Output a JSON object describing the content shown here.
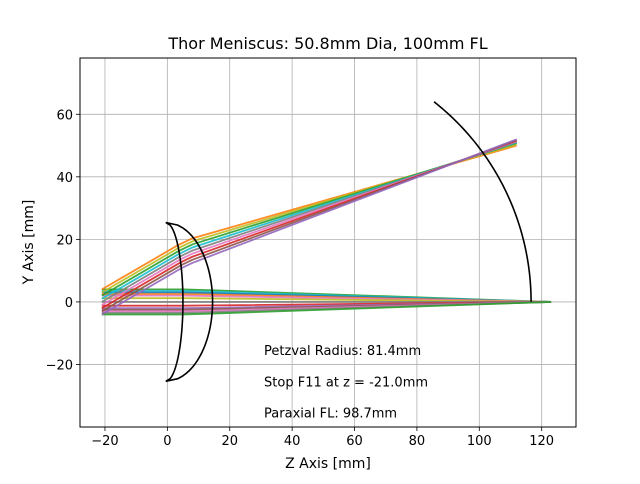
{
  "chart_data": {
    "type": "line",
    "title": "Thor Meniscus: 50.8mm Dia, 100mm FL",
    "xlabel": "Z Axis [mm]",
    "ylabel": "Y Axis [mm]",
    "xlim": [
      -28,
      131
    ],
    "ylim": [
      -40,
      78
    ],
    "xticks": [
      -20,
      0,
      20,
      40,
      60,
      80,
      100,
      120
    ],
    "yticks": [
      -20,
      0,
      20,
      40,
      60
    ],
    "grid": true,
    "annotations": [
      {
        "text": "Petzval Radius: 81.4mm",
        "x": 31,
        "y": -17
      },
      {
        "text": "Stop F11 at z = -21.0mm",
        "x": 31,
        "y": -27
      },
      {
        "text": "Paraxial FL: 98.7mm",
        "x": 31,
        "y": -37
      }
    ],
    "lens": {
      "name": "meniscus lens",
      "color": "#000000",
      "front_surface": {
        "apex_z": 5,
        "edge_z": -0.5,
        "half_height": 25.4
      },
      "back_surface": {
        "apex_z": 14.5,
        "edge_z": -0.5,
        "half_height": 25.4
      }
    },
    "petzval_surface": {
      "name": "petzval surface",
      "color": "#000000",
      "center_z": 35.2,
      "radius": 81.4,
      "y_range": [
        0,
        64
      ]
    },
    "ray_bundles": [
      {
        "name": "on-axis bundle",
        "end": [
          123,
          0
        ],
        "rays": [
          {
            "y": 4.0,
            "color": "#2ca02c"
          },
          {
            "y": 3.5,
            "color": "#17becf"
          },
          {
            "y": 3.0,
            "color": "#1f77b4"
          },
          {
            "y": 2.5,
            "color": "#ff7f0e"
          },
          {
            "y": 2.0,
            "color": "#e377c2"
          },
          {
            "y": 1.2,
            "color": "#bcbd22"
          },
          {
            "y": 0.0,
            "color": "#7f7f7f"
          },
          {
            "y": -1.2,
            "color": "#d62728"
          },
          {
            "y": -2.0,
            "color": "#9467bd"
          },
          {
            "y": -2.5,
            "color": "#8c564b"
          },
          {
            "y": -3.0,
            "color": "#e377c2"
          },
          {
            "y": -3.5,
            "color": "#7f7f7f"
          },
          {
            "y": -4.0,
            "color": "#2ca02c"
          }
        ]
      },
      {
        "name": "off-axis bundle",
        "end": [
          112,
          51
        ],
        "rays": [
          {
            "y": 4.0,
            "color": "#ff7f0e",
            "end_y": 50.0
          },
          {
            "y": 3.0,
            "color": "#bcbd22",
            "end_y": 50.4
          },
          {
            "y": 2.0,
            "color": "#2ca02c",
            "end_y": 50.8
          },
          {
            "y": 1.0,
            "color": "#17becf",
            "end_y": 51.0
          },
          {
            "y": 0.0,
            "color": "#7f7f7f",
            "end_y": 51.2
          },
          {
            "y": -1.0,
            "color": "#e377c2",
            "end_y": 51.4
          },
          {
            "y": -2.0,
            "color": "#d62728",
            "end_y": 51.6
          },
          {
            "y": -3.0,
            "color": "#8c564b",
            "end_y": 51.8
          },
          {
            "y": -4.0,
            "color": "#9467bd",
            "end_y": 52.0
          }
        ]
      }
    ]
  }
}
